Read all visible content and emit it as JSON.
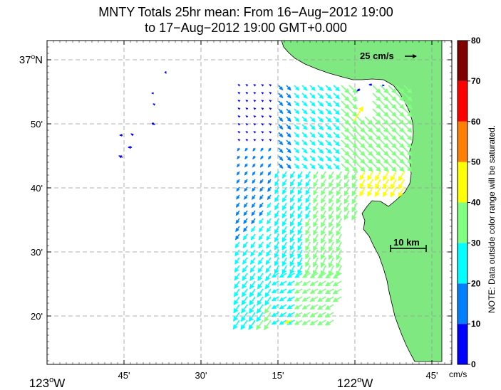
{
  "title": {
    "line1": "MNTY Totals 25hr mean: From 16−Aug−2012 19:00",
    "line2": "to 17−Aug−2012 19:00 GMT+0.000"
  },
  "axes": {
    "y_ticks": [
      {
        "deg": "37",
        "sup": "o",
        "hem": "N",
        "value": 37.0
      },
      {
        "label": "50'",
        "value": 36.8333
      },
      {
        "label": "40'",
        "value": 36.6667
      },
      {
        "label": "30'",
        "value": 36.5
      },
      {
        "label": "20'",
        "value": 36.3333
      }
    ],
    "x_ticks": [
      {
        "deg": "123",
        "sup": "o",
        "hem": "W",
        "value": -123.0
      },
      {
        "label": "45'",
        "value": -122.75
      },
      {
        "label": "30'",
        "value": -122.5
      },
      {
        "label": "15'",
        "value": -122.25
      },
      {
        "deg": "122",
        "sup": "o",
        "hem": "W",
        "value": -122.0
      },
      {
        "label": "45'",
        "value": -121.75
      }
    ],
    "lon_range": [
      -123.05,
      -121.7
    ],
    "lat_range": [
      36.22,
      37.05
    ],
    "grid": "dashed"
  },
  "reference_vector": {
    "label": "25 cm/s",
    "speed_cms": 25
  },
  "scale_bar": {
    "label": "10 km",
    "km": 10
  },
  "colorbar": {
    "ticks": [
      "0",
      "10",
      "20",
      "30",
      "40",
      "50",
      "60",
      "70",
      "80"
    ],
    "unit": "cm/s",
    "note": "NOTE: Data outside color range will be saturated.",
    "colors": [
      "#0000ff",
      "#0080ff",
      "#00ffff",
      "#80ff80",
      "#ffff00",
      "#ff8000",
      "#ff0000",
      "#800000"
    ],
    "range": [
      0,
      80
    ]
  },
  "land_color": "#80e880",
  "vectors_note": "surface current vectors, speed in cm/s"
}
